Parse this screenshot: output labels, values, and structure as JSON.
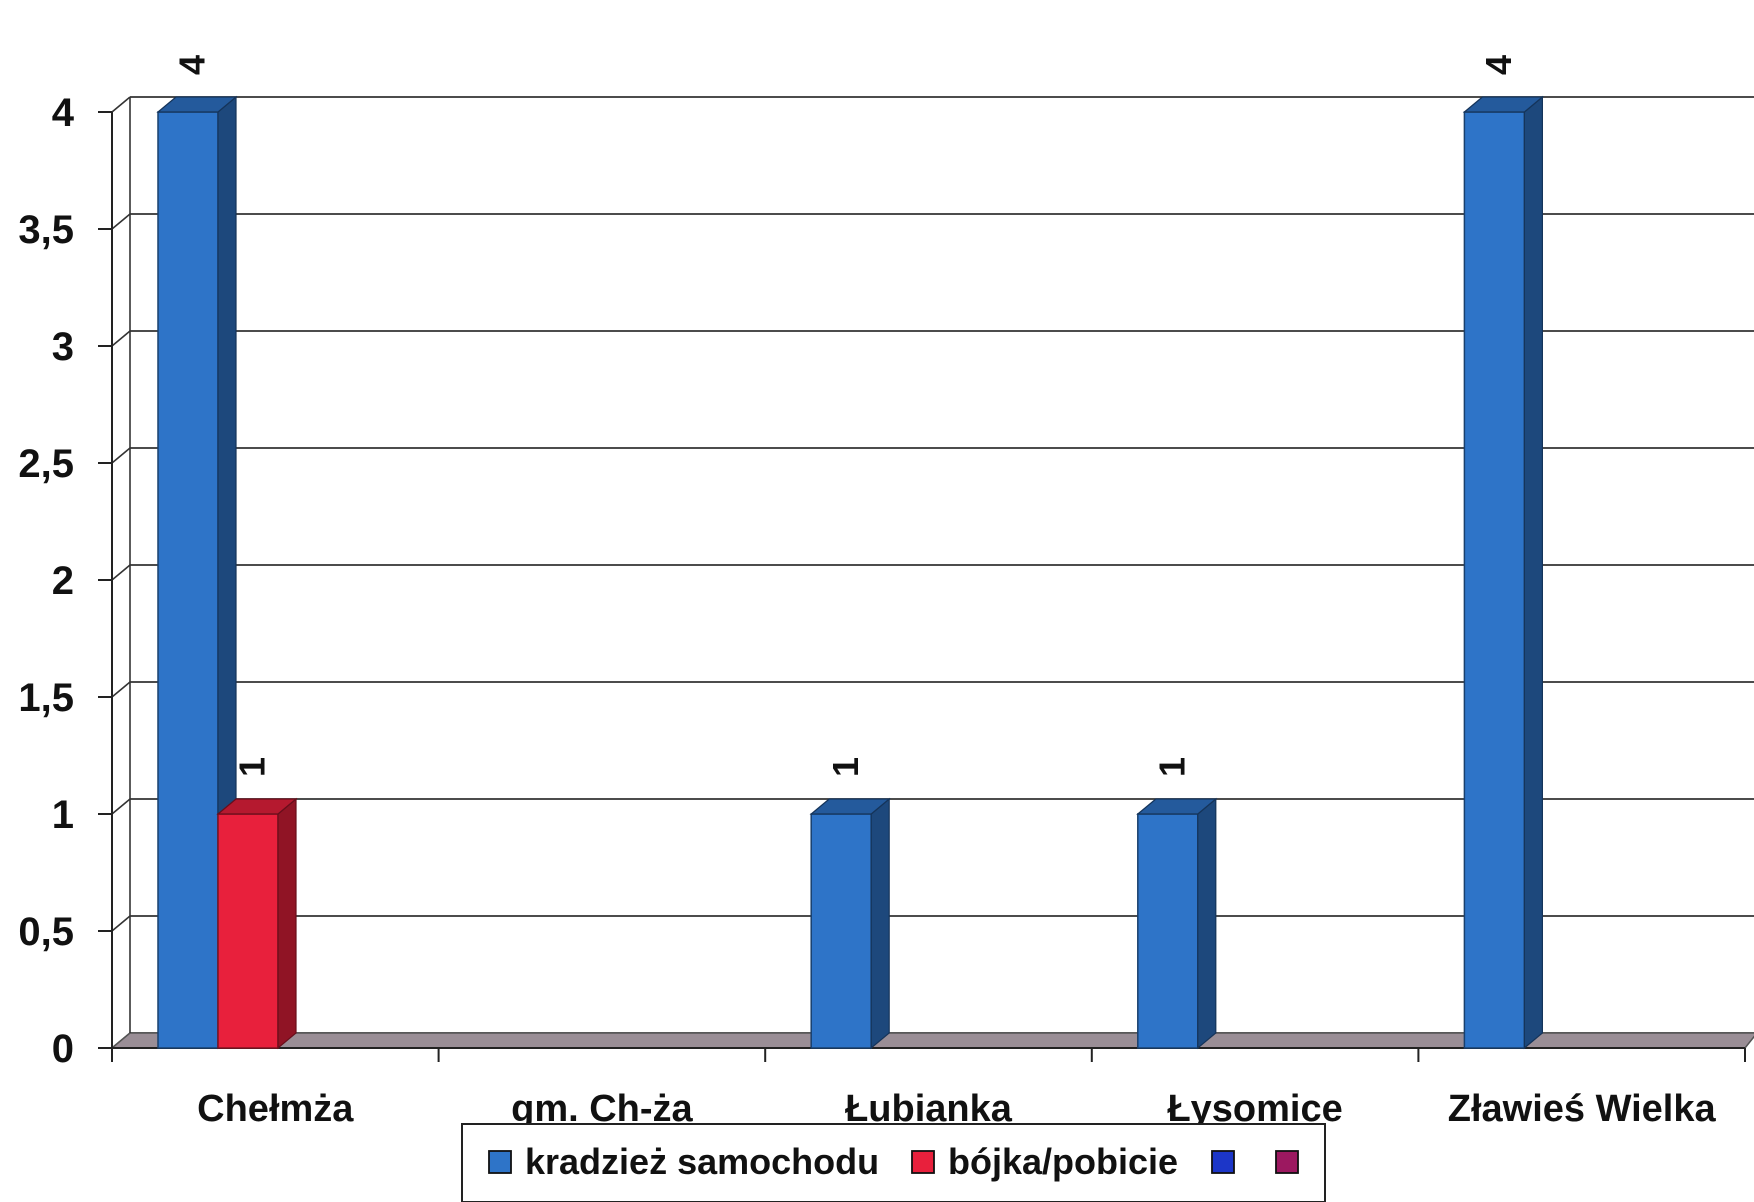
{
  "chart_data": {
    "type": "bar",
    "categories": [
      "Chełmża",
      "gm. Ch-ża",
      "Łubianka",
      "Łysomice",
      "Zławieś Wielka"
    ],
    "series": [
      {
        "name": "kradzież samochodu",
        "color": "#2e74c8",
        "values": [
          4,
          0,
          1,
          1,
          4
        ]
      },
      {
        "name": "bójka/pobicie",
        "color": "#e8203c",
        "values": [
          1,
          0,
          0,
          0,
          0
        ]
      },
      {
        "name": "",
        "color": "#1c36c8",
        "values": [
          0,
          0,
          0,
          0,
          0
        ]
      },
      {
        "name": "",
        "color": "#9c1860",
        "values": [
          0,
          0,
          0,
          0,
          0
        ]
      }
    ],
    "ylim": [
      0,
      4
    ],
    "yticks": [
      "0",
      "0,5",
      "1",
      "1,5",
      "2",
      "2,5",
      "3",
      "3,5",
      "4"
    ],
    "data_labels": [
      "4",
      "1",
      "1",
      "1",
      "4"
    ],
    "grid": true,
    "legend_position": "bottom",
    "colors": {
      "floor": "#9a8e96",
      "grid": "#333333",
      "background": "#ffffff"
    }
  }
}
